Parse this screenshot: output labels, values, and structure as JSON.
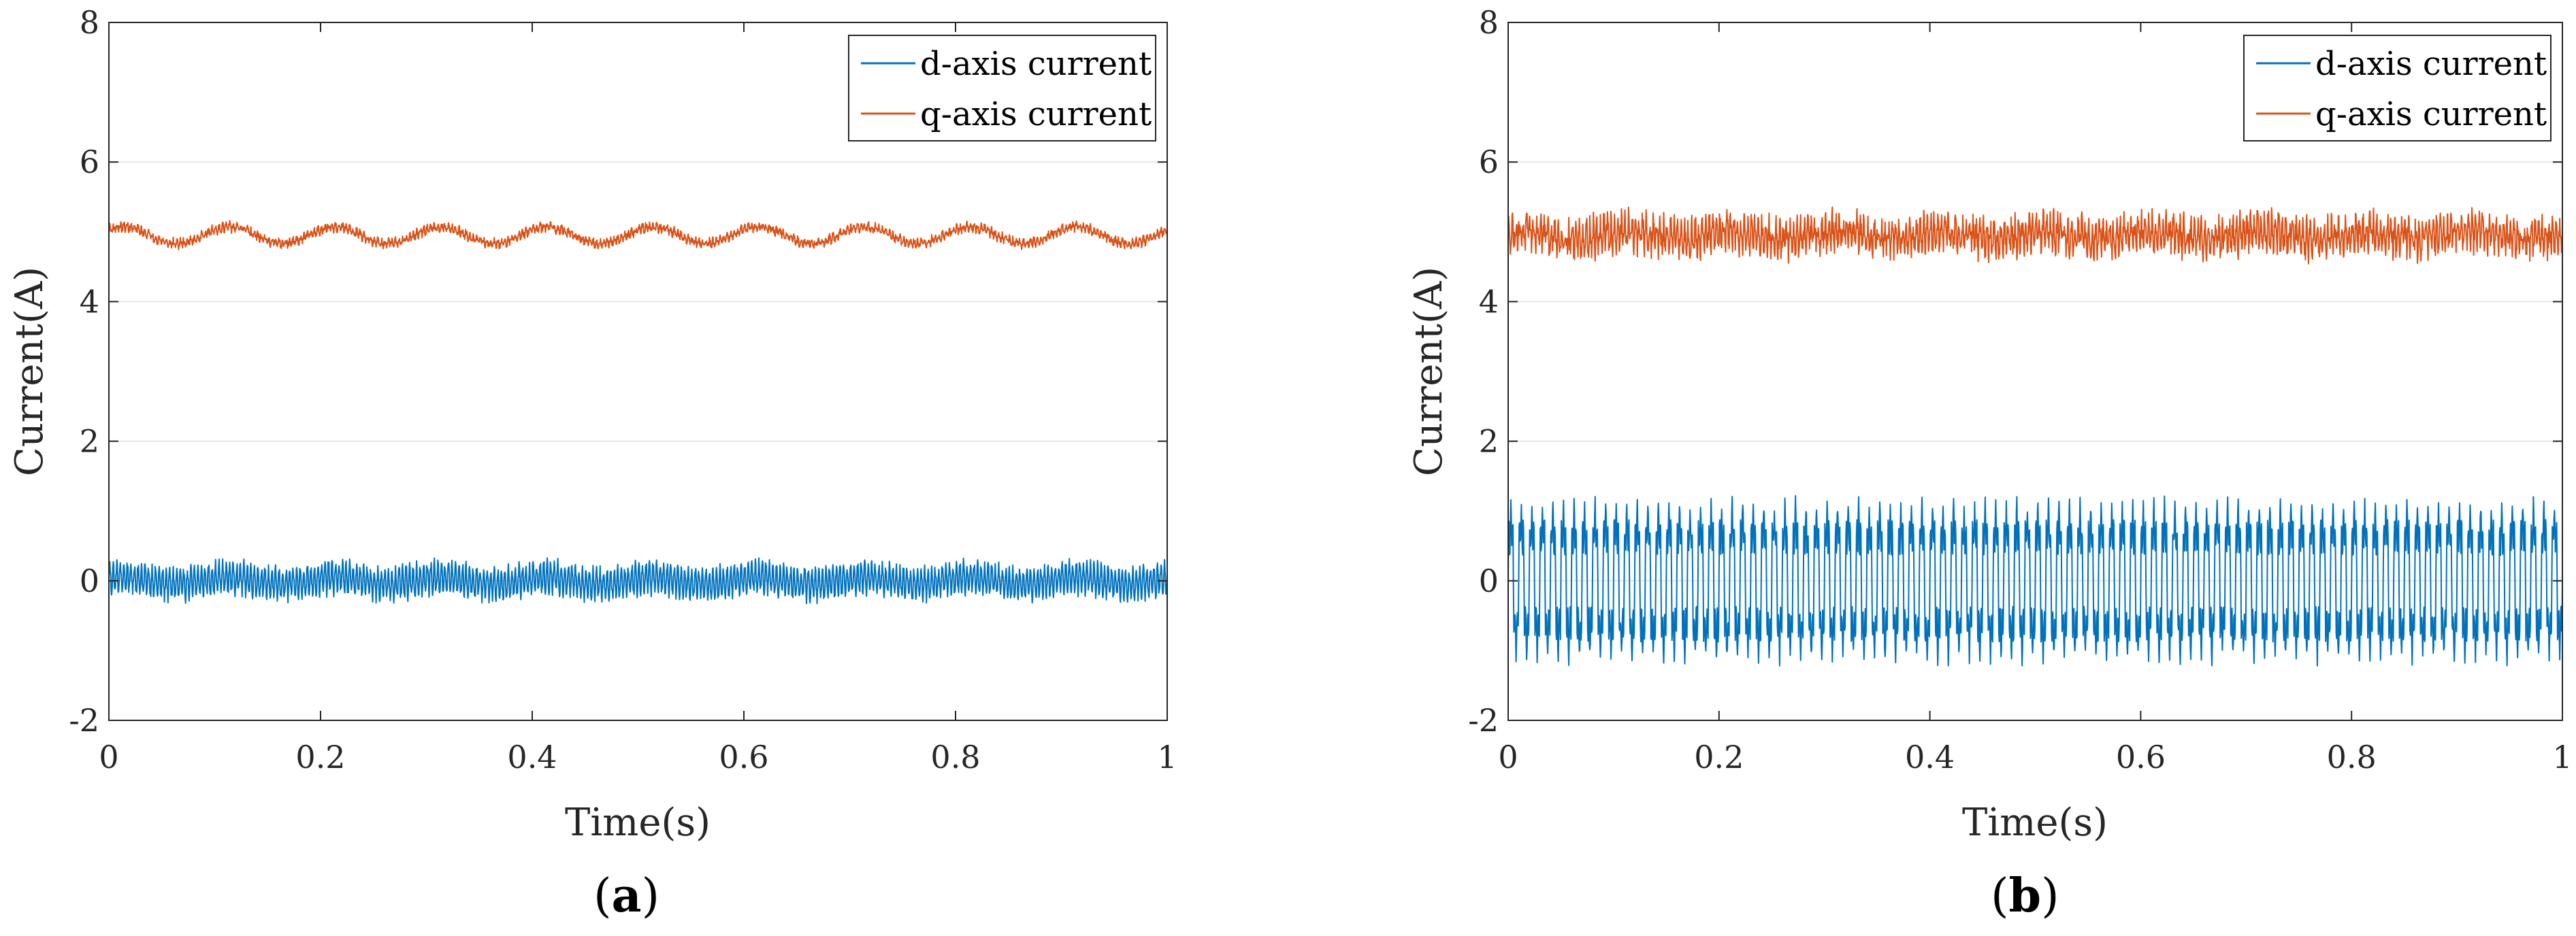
{
  "chart_data": [
    {
      "type": "line",
      "panel_label": "a",
      "xlabel": "Time(s)",
      "ylabel": "Current(A)",
      "xlim": [
        0,
        1
      ],
      "ylim": [
        -2,
        8
      ],
      "xticks": [
        0,
        0.2,
        0.4,
        0.6,
        0.8,
        1
      ],
      "xtick_labels": [
        "0",
        "0.2",
        "0.4",
        "0.6",
        "0.8",
        "1"
      ],
      "yticks": [
        -2,
        0,
        2,
        4,
        6,
        8
      ],
      "ytick_labels": [
        "-2",
        "0",
        "2",
        "4",
        "6",
        "8"
      ],
      "grid": "horizontal",
      "legend_position": "top-right",
      "series": [
        {
          "name": "d-axis current",
          "color": "#0072BD",
          "mean": 0.0,
          "ripple_amplitude": 0.2,
          "ripple_frequency_hz": 300,
          "low_freq_amplitude": 0.05,
          "low_freq_hz": 10,
          "noise": 0.08
        },
        {
          "name": "q-axis current",
          "color": "#D95319",
          "mean": 4.95,
          "ripple_amplitude": 0.04,
          "ripple_frequency_hz": 300,
          "low_freq_amplitude": 0.12,
          "low_freq_hz": 10,
          "noise": 0.05
        }
      ]
    },
    {
      "type": "line",
      "panel_label": "b",
      "xlabel": "Time(s)",
      "ylabel": "Current(A)",
      "xlim": [
        0,
        1
      ],
      "ylim": [
        -2,
        8
      ],
      "xticks": [
        0,
        0.2,
        0.4,
        0.6,
        0.8,
        1
      ],
      "xtick_labels": [
        "0",
        "0.2",
        "0.4",
        "0.6",
        "0.8",
        "1"
      ],
      "yticks": [
        -2,
        0,
        2,
        4,
        6,
        8
      ],
      "ytick_labels": [
        "-2",
        "0",
        "2",
        "4",
        "6",
        "8"
      ],
      "grid": "horizontal",
      "legend_position": "top-right",
      "series": [
        {
          "name": "d-axis current",
          "color": "#0072BD",
          "mean": 0.0,
          "ripple_amplitude": 1.0,
          "ripple_frequency_hz": 100,
          "low_freq_amplitude": 0.0,
          "low_freq_hz": 10,
          "noise": 0.12
        },
        {
          "name": "q-axis current",
          "color": "#D95319",
          "mean": 4.95,
          "ripple_amplitude": 0.18,
          "ripple_frequency_hz": 300,
          "low_freq_amplitude": 0.05,
          "low_freq_hz": 10,
          "noise": 0.18
        }
      ]
    }
  ]
}
